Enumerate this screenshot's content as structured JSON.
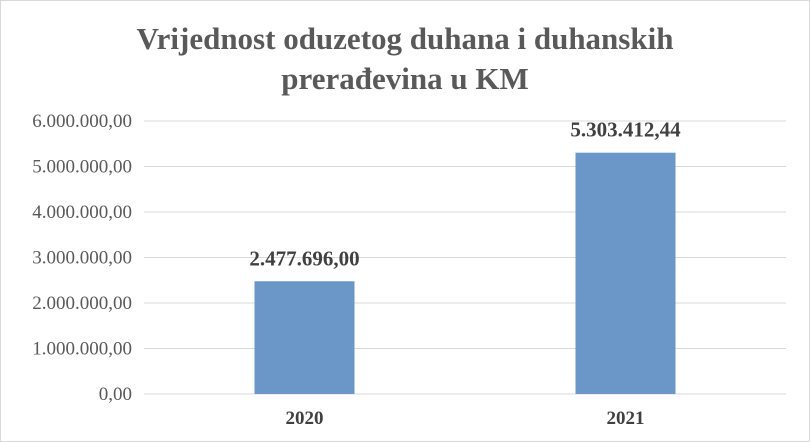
{
  "chart_data": {
    "type": "bar",
    "title_lines": [
      "Vrijednost oduzetog duhana i duhanskih",
      "prerađevina u KM"
    ],
    "categories": [
      "2020",
      "2021"
    ],
    "values": [
      2477696.0,
      5303412.44
    ],
    "data_labels": [
      "2.477.696,00",
      "5.303.412,44"
    ],
    "ylim": [
      0,
      6000000
    ],
    "yticks": [
      0,
      1000000,
      2000000,
      3000000,
      4000000,
      5000000,
      6000000
    ],
    "ytick_labels": [
      "0,00",
      "1.000.000,00",
      "2.000.000,00",
      "3.000.000,00",
      "4.000.000,00",
      "5.000.000,00",
      "6.000.000,00"
    ],
    "xlabel": "",
    "ylabel": "",
    "grid": true,
    "legend": "none",
    "colors": {
      "bar": "#6b97c8",
      "grid": "#d9d9d9",
      "text": "#595959"
    }
  }
}
